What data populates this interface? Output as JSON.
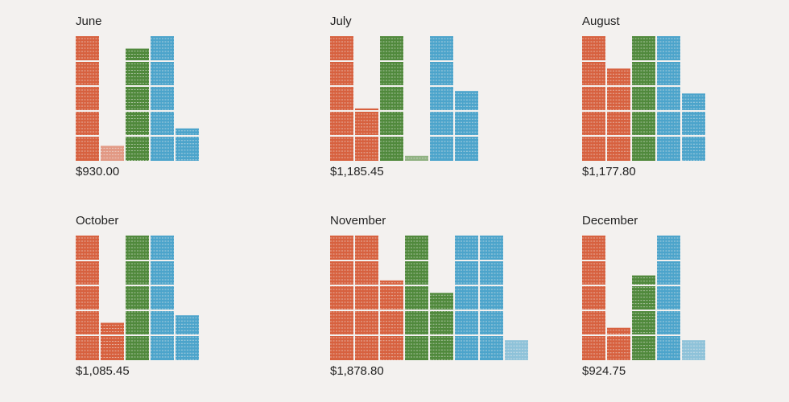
{
  "colors": {
    "series": [
      "#d4512b",
      "#3e7d28",
      "#3a9bc7"
    ],
    "background": "#f3f1ef"
  },
  "chart_data": [
    {
      "type": "bar",
      "title": "June",
      "total_label": "$930.00",
      "values": [
        5,
        0.6,
        4.5,
        5,
        1.3
      ],
      "colors": [
        "#d4512b",
        "#d4512b",
        "#3e7d28",
        "#3a9bc7",
        "#3a9bc7"
      ]
    },
    {
      "type": "bar",
      "title": "July",
      "total_label": "$1,185.45",
      "values": [
        5,
        2.1,
        5,
        0.2,
        5,
        2.8
      ],
      "colors": [
        "#d4512b",
        "#d4512b",
        "#3e7d28",
        "#3e7d28",
        "#3a9bc7",
        "#3a9bc7"
      ]
    },
    {
      "type": "bar",
      "title": "August",
      "total_label": "$1,177.80",
      "values": [
        5,
        3.7,
        5,
        5,
        2.7
      ],
      "colors": [
        "#d4512b",
        "#d4512b",
        "#3e7d28",
        "#3a9bc7",
        "#3a9bc7"
      ]
    },
    {
      "type": "bar",
      "title": "October",
      "total_label": "$1,085.45",
      "values": [
        5,
        1.5,
        5,
        5,
        1.8
      ],
      "colors": [
        "#d4512b",
        "#d4512b",
        "#3e7d28",
        "#3a9bc7",
        "#3a9bc7"
      ]
    },
    {
      "type": "bar",
      "title": "November",
      "total_label": "$1,878.80",
      "values": [
        5,
        5,
        3.2,
        5,
        2.7,
        5,
        5,
        0.8
      ],
      "colors": [
        "#d4512b",
        "#d4512b",
        "#d4512b",
        "#3e7d28",
        "#3e7d28",
        "#3a9bc7",
        "#3a9bc7",
        "#3a9bc7"
      ]
    },
    {
      "type": "bar",
      "title": "December",
      "total_label": "$924.75",
      "values": [
        5,
        1.3,
        3.4,
        5,
        0.8
      ],
      "colors": [
        "#d4512b",
        "#d4512b",
        "#3e7d28",
        "#3a9bc7",
        "#3a9bc7"
      ]
    }
  ]
}
